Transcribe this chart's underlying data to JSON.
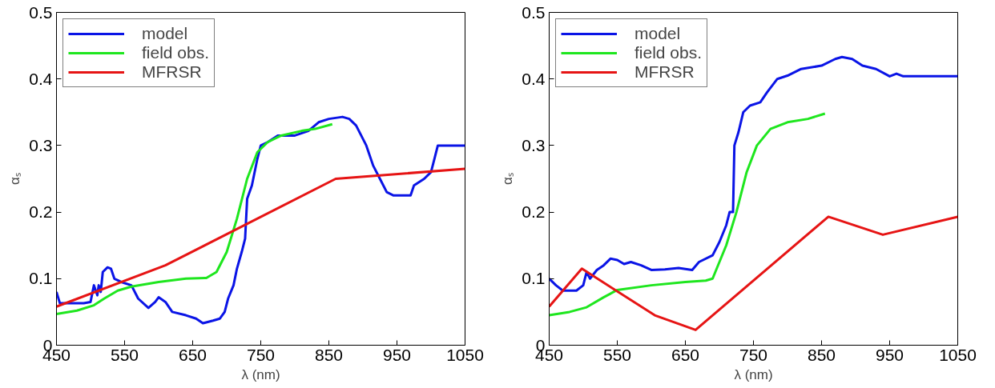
{
  "chart_data": [
    {
      "type": "line",
      "xlabel": "λ (nm)",
      "ylabel": "αₛ",
      "xlim": [
        450,
        1050
      ],
      "ylim": [
        0,
        0.5
      ],
      "xticks": [
        450,
        550,
        650,
        750,
        850,
        950,
        1050
      ],
      "yticks": [
        0,
        0.1,
        0.2,
        0.3,
        0.4,
        0.5
      ],
      "grid": false,
      "legend": "top left",
      "line_style": "solid",
      "marker": "none",
      "series": [
        {
          "name": "model",
          "color": "#0a14e6",
          "x": [
            450,
            455,
            490,
            500,
            505,
            510,
            512,
            515,
            518,
            525,
            530,
            535,
            545,
            560,
            570,
            585,
            595,
            600,
            610,
            620,
            640,
            655,
            665,
            680,
            690,
            697,
            702,
            710,
            715,
            722,
            727,
            730,
            737,
            745,
            750,
            760,
            775,
            800,
            820,
            835,
            850,
            870,
            880,
            890,
            905,
            915,
            925,
            935,
            945,
            970,
            975,
            990,
            1000,
            1005,
            1010,
            1050
          ],
          "values": [
            0.08,
            0.063,
            0.063,
            0.065,
            0.09,
            0.075,
            0.09,
            0.08,
            0.11,
            0.117,
            0.115,
            0.1,
            0.095,
            0.09,
            0.07,
            0.056,
            0.065,
            0.072,
            0.065,
            0.05,
            0.045,
            0.04,
            0.033,
            0.037,
            0.04,
            0.05,
            0.07,
            0.09,
            0.115,
            0.14,
            0.16,
            0.22,
            0.24,
            0.28,
            0.3,
            0.305,
            0.315,
            0.315,
            0.322,
            0.335,
            0.34,
            0.343,
            0.34,
            0.33,
            0.3,
            0.27,
            0.25,
            0.23,
            0.225,
            0.225,
            0.24,
            0.25,
            0.26,
            0.28,
            0.3,
            0.3
          ]
        },
        {
          "name": "field obs.",
          "color": "#1ee61e",
          "x": [
            450,
            480,
            505,
            520,
            540,
            560,
            600,
            640,
            670,
            685,
            700,
            715,
            730,
            745,
            760,
            780,
            810,
            830,
            855
          ],
          "values": [
            0.047,
            0.052,
            0.06,
            0.07,
            0.082,
            0.088,
            0.095,
            0.1,
            0.101,
            0.11,
            0.14,
            0.19,
            0.25,
            0.29,
            0.305,
            0.315,
            0.322,
            0.325,
            0.332
          ]
        },
        {
          "name": "MFRSR",
          "color": "#e61414",
          "x": [
            450,
            610,
            860,
            1050
          ],
          "values": [
            0.058,
            0.12,
            0.25,
            0.265
          ]
        }
      ]
    },
    {
      "type": "line",
      "xlabel": "λ (nm)",
      "ylabel": "αₛ",
      "xlim": [
        450,
        1050
      ],
      "ylim": [
        0,
        0.5
      ],
      "xticks": [
        450,
        550,
        650,
        750,
        850,
        950,
        1050
      ],
      "yticks": [
        0,
        0.1,
        0.2,
        0.3,
        0.4,
        0.5
      ],
      "grid": false,
      "legend": "top left",
      "line_style": "solid",
      "marker": "none",
      "series": [
        {
          "name": "model",
          "color": "#0a14e6",
          "x": [
            450,
            460,
            470,
            490,
            500,
            505,
            510,
            520,
            530,
            540,
            550,
            560,
            570,
            585,
            600,
            620,
            640,
            660,
            670,
            690,
            700,
            710,
            715,
            720,
            722,
            728,
            735,
            745,
            760,
            770,
            785,
            800,
            820,
            850,
            870,
            880,
            895,
            910,
            930,
            950,
            960,
            970,
            1050
          ],
          "values": [
            0.1,
            0.09,
            0.082,
            0.082,
            0.09,
            0.11,
            0.1,
            0.113,
            0.12,
            0.13,
            0.128,
            0.122,
            0.125,
            0.12,
            0.113,
            0.114,
            0.116,
            0.113,
            0.125,
            0.135,
            0.155,
            0.18,
            0.2,
            0.2,
            0.3,
            0.32,
            0.35,
            0.36,
            0.365,
            0.38,
            0.4,
            0.405,
            0.415,
            0.42,
            0.43,
            0.433,
            0.43,
            0.42,
            0.415,
            0.404,
            0.408,
            0.404,
            0.404
          ]
        },
        {
          "name": "field obs.",
          "color": "#1ee61e",
          "x": [
            450,
            480,
            505,
            530,
            550,
            600,
            650,
            680,
            690,
            710,
            725,
            740,
            755,
            775,
            800,
            830,
            855
          ],
          "values": [
            0.045,
            0.05,
            0.057,
            0.072,
            0.083,
            0.09,
            0.095,
            0.097,
            0.1,
            0.15,
            0.2,
            0.26,
            0.3,
            0.325,
            0.335,
            0.34,
            0.348
          ]
        },
        {
          "name": "MFRSR",
          "color": "#e61414",
          "x": [
            450,
            498,
            605,
            665,
            860,
            940,
            1050
          ],
          "values": [
            0.058,
            0.115,
            0.045,
            0.023,
            0.193,
            0.166,
            0.193
          ]
        }
      ]
    }
  ]
}
